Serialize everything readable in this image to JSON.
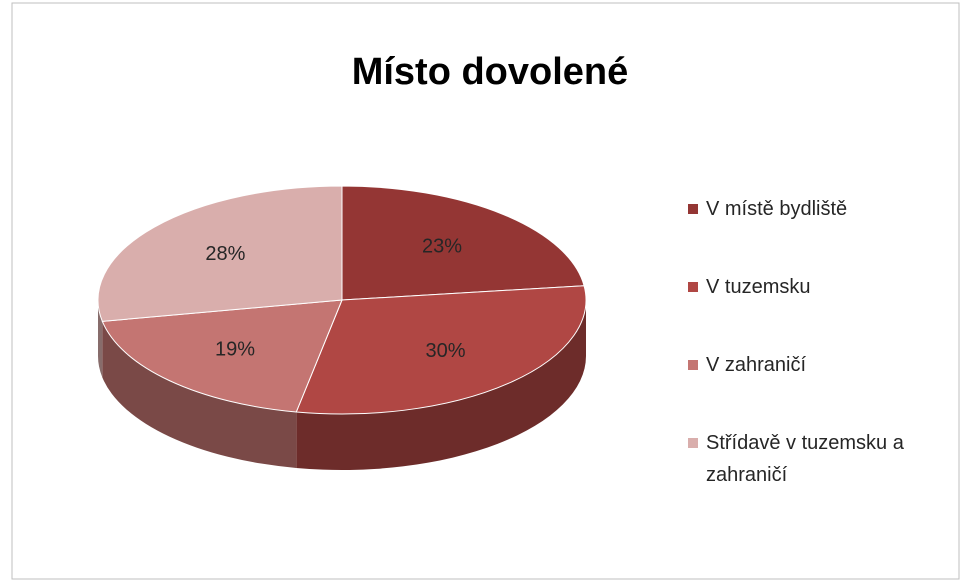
{
  "chart_data": {
    "type": "pie",
    "title": "Místo dovolené",
    "categories": [
      "V místě bydliště",
      "V tuzemsku",
      "V zahraničí",
      "Střídavě v tuzemsku a zahraničí"
    ],
    "values": [
      23,
      30,
      19,
      28
    ],
    "value_labels": [
      "23%",
      "30%",
      "19%",
      "28%"
    ],
    "colors": [
      "#943634",
      "#b04744",
      "#c47572",
      "#d9aeac"
    ],
    "legend": "right"
  }
}
